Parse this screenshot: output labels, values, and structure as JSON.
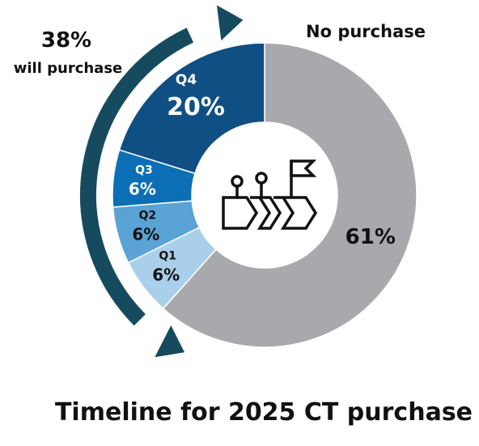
{
  "chart_data": {
    "type": "donut",
    "title": "Timeline for 2025 CT purchase",
    "slices": [
      {
        "label": "No purchase",
        "value": 61,
        "value_label": "61%",
        "color": "#a7a9ac"
      },
      {
        "label": "Q1",
        "value": 6,
        "value_label": "6%",
        "color": "#a9cfea"
      },
      {
        "label": "Q2",
        "value": 6,
        "value_label": "6%",
        "color": "#5aa3d6"
      },
      {
        "label": "Q3",
        "value": 6,
        "value_label": "6%",
        "color": "#0c6fb6"
      },
      {
        "label": "Q4",
        "value": 20,
        "value_label": "20%",
        "color": "#0f4f84"
      }
    ],
    "annotation": {
      "value": "38%",
      "text": "will purchase",
      "color": "#164b5f"
    },
    "center_icon": "timeline-flag-icon"
  }
}
